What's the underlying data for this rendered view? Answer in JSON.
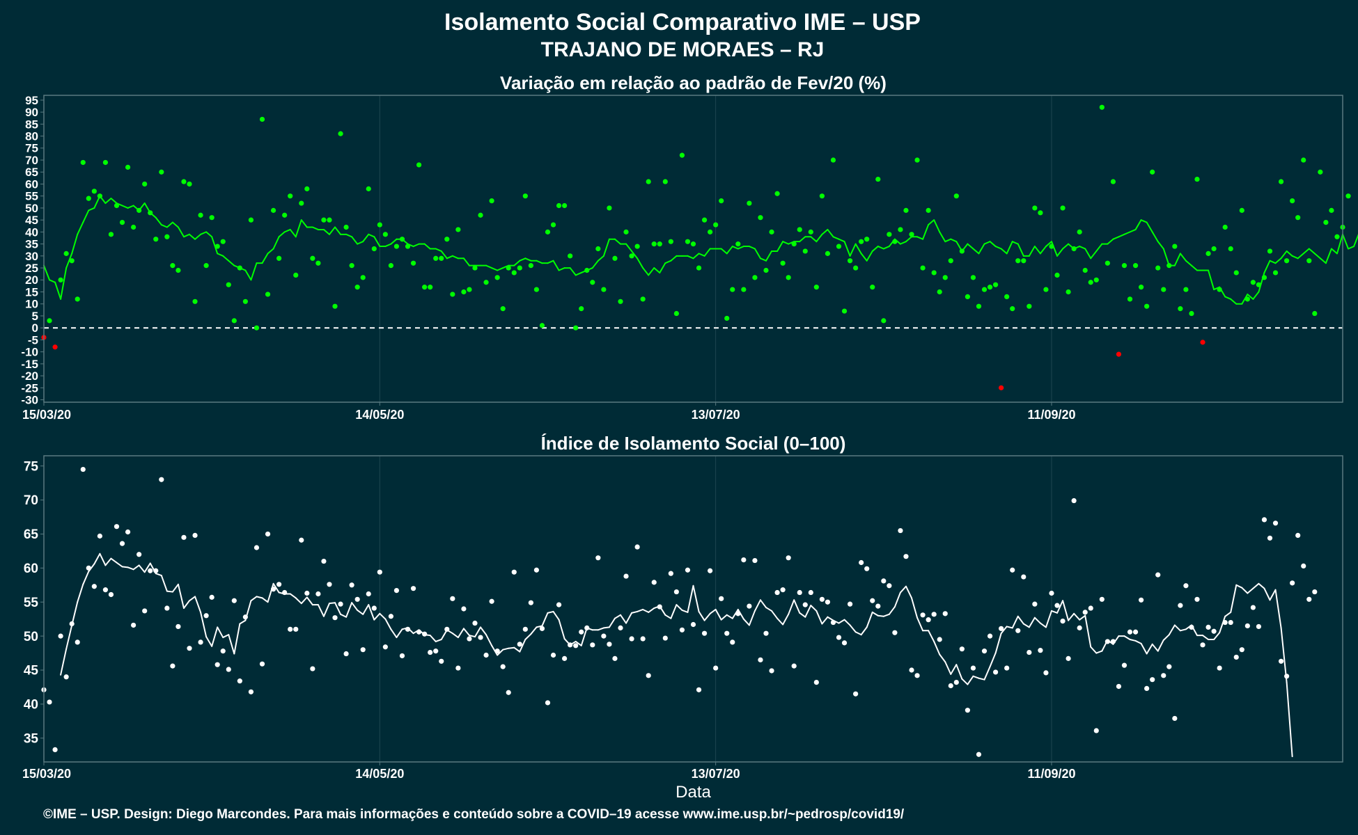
{
  "title": "Isolamento Social Comparativo IME – USP",
  "subtitle": "TRAJANO DE MORAES – RJ",
  "footer": "©IME – USP. Design: Diego Marcondes. Para mais informações e conteúdo sobre a COVID–19 acesse www.ime.usp.br/~pedrosp/covid19/",
  "colors": {
    "background": "#002b36",
    "panel_border": "#5a7a80",
    "grid": "#1e4650",
    "positive": "#00ff00",
    "negative": "#ff0000",
    "white": "#ffffff"
  },
  "chart_data": [
    {
      "type": "scatter",
      "title": "Variação em relação ao padrão de Fev/20 (%)",
      "xlabel": "",
      "ylabel": "",
      "x_start": "15/03/20",
      "x_ticks": [
        "15/03/20",
        "14/05/20",
        "13/07/20",
        "11/09/20"
      ],
      "x_tick_days": [
        0,
        60,
        120,
        180
      ],
      "xlim_days": [
        0,
        232
      ],
      "ylim": [
        -31,
        97
      ],
      "y_ticks": [
        -30,
        -25,
        -20,
        -15,
        -10,
        -5,
        0,
        5,
        10,
        15,
        20,
        25,
        30,
        35,
        40,
        45,
        50,
        55,
        60,
        65,
        70,
        75,
        80,
        85,
        90,
        95
      ],
      "reference_line": 0,
      "grid": true,
      "legend": "none",
      "series": [
        {
          "kind": "points",
          "values": [
            -4,
            3,
            -8,
            20,
            31,
            28,
            12,
            69,
            54,
            57,
            55,
            69,
            39,
            51,
            44,
            67,
            42,
            49,
            60,
            48,
            37,
            65,
            38,
            26,
            24,
            61,
            60,
            11,
            47,
            26,
            46,
            34,
            36,
            18,
            3,
            25,
            11,
            45,
            0,
            87,
            14,
            49,
            29,
            47,
            55,
            22,
            52,
            58,
            29,
            27,
            45,
            45,
            9,
            81,
            42,
            26,
            17,
            21,
            58,
            33,
            43,
            39,
            26,
            34,
            37,
            34,
            27,
            68,
            17,
            17,
            29,
            29,
            37,
            14,
            41,
            15,
            16,
            25,
            47,
            19,
            53,
            21,
            8,
            25,
            23,
            25,
            55,
            26,
            16,
            1,
            40,
            43,
            51,
            51,
            30,
            0,
            8,
            24,
            19,
            33,
            16,
            50,
            29,
            11,
            40,
            30,
            34,
            12,
            61,
            35,
            35,
            61,
            36,
            6,
            72,
            36,
            35,
            25,
            45,
            40,
            43,
            53,
            4,
            16,
            35,
            16,
            52,
            21,
            46,
            24,
            40,
            56,
            27,
            21,
            35,
            41,
            32,
            40,
            17,
            55,
            31,
            70,
            34,
            7,
            28,
            25,
            36,
            37,
            17,
            62,
            3,
            39,
            36,
            41,
            49,
            39,
            70,
            25,
            49,
            23,
            15,
            21,
            28,
            55,
            32,
            13,
            21,
            9,
            16,
            17,
            18,
            -25,
            13,
            8,
            28,
            28,
            9,
            50,
            48,
            16,
            34,
            22,
            50,
            15,
            33,
            40,
            24,
            19,
            20,
            92,
            27,
            61,
            -11,
            26,
            12,
            26,
            17,
            9,
            65,
            25,
            16,
            26,
            34,
            8,
            16,
            6,
            62,
            -6,
            31,
            33,
            16,
            42,
            33,
            23,
            49,
            12,
            19,
            18,
            21,
            32,
            23,
            61,
            28,
            53,
            46,
            70,
            28,
            6,
            65,
            44,
            49,
            38,
            42,
            55
          ]
        },
        {
          "kind": "line",
          "name": "",
          "start_day": 0,
          "values": [
            26,
            20,
            19,
            12,
            25,
            31,
            39,
            44,
            49,
            50,
            55,
            52,
            54,
            52,
            51,
            50,
            51,
            49,
            52,
            48,
            46,
            43,
            42,
            44,
            42,
            38,
            39,
            37,
            39,
            40,
            38,
            31,
            30,
            28,
            26,
            25,
            24,
            20,
            27,
            27,
            31,
            33,
            38,
            40,
            41,
            38,
            45,
            42,
            42,
            41,
            41,
            39,
            42,
            39,
            39,
            38,
            35,
            36,
            39,
            38,
            34,
            34,
            35,
            37,
            37,
            35,
            34,
            35,
            35,
            33,
            33,
            32,
            29,
            30,
            29,
            29,
            26,
            26,
            26,
            26,
            25,
            24,
            25,
            26,
            26,
            28,
            29,
            28,
            28,
            27,
            27,
            28,
            24,
            25,
            25,
            22,
            23,
            24,
            25,
            28,
            30,
            37,
            37,
            35,
            35,
            32,
            29,
            25,
            22,
            25,
            23,
            27,
            28,
            30,
            30,
            30,
            29,
            31,
            30,
            33,
            33,
            33,
            31,
            34,
            33,
            34,
            34,
            33,
            29,
            28,
            32,
            32,
            36,
            35,
            36,
            36,
            38,
            38,
            36,
            39,
            41,
            38,
            37,
            36,
            30,
            35,
            31,
            28,
            32,
            34,
            33,
            34,
            37,
            35,
            36,
            38,
            38,
            37,
            43,
            45,
            40,
            36,
            37,
            36,
            32,
            35,
            33,
            31,
            35,
            36,
            34,
            33,
            31,
            36,
            35,
            30,
            30,
            34,
            31,
            34,
            36,
            30,
            33,
            35,
            33,
            34,
            33,
            29,
            32,
            35,
            35,
            37,
            38,
            39,
            40,
            41,
            45,
            44,
            40,
            36,
            33,
            26,
            26,
            31,
            28,
            26,
            24,
            24,
            24,
            16,
            17,
            13,
            12,
            10,
            10,
            14,
            12,
            15,
            23,
            28,
            27,
            29,
            32,
            30,
            29,
            31,
            33,
            31,
            29,
            27,
            33,
            31,
            39,
            33,
            34,
            40,
            38,
            33,
            33,
            32,
            32,
            26,
            24,
            25,
            24,
            25,
            22,
            28,
            25,
            25,
            26,
            25,
            25,
            21,
            25,
            20,
            24,
            26,
            28,
            26,
            30,
            30,
            28,
            28,
            29,
            29,
            25,
            25,
            25,
            27,
            30,
            38,
            44,
            44,
            42,
            43,
            44,
            44,
            42,
            38,
            43
          ]
        }
      ]
    },
    {
      "type": "scatter",
      "title": "Índice de Isolamento Social (0–100)",
      "xlabel": "Data",
      "ylabel": "",
      "x_start": "15/03/20",
      "x_ticks": [
        "15/03/20",
        "14/05/20",
        "13/07/20",
        "11/09/20"
      ],
      "x_tick_days": [
        0,
        60,
        120,
        180
      ],
      "xlim_days": [
        0,
        232
      ],
      "ylim": [
        31.5,
        76.5
      ],
      "y_ticks": [
        35,
        40,
        45,
        50,
        55,
        60,
        65,
        70,
        75
      ],
      "grid": true,
      "legend": "none",
      "series": [
        {
          "kind": "points",
          "values": [
            42.1,
            40.3,
            33.3,
            50,
            44,
            51.8,
            49.1,
            74.5,
            60,
            57.3,
            64.7,
            56.8,
            56.1,
            66.1,
            63.6,
            65.3,
            51.6,
            62,
            53.7,
            59.6,
            59.6,
            73,
            54.1,
            45.6,
            51.4,
            64.5,
            48.2,
            64.8,
            49.1,
            53,
            55.7,
            45.8,
            47.8,
            45.1,
            55.2,
            43.4,
            52.8,
            41.8,
            63,
            45.9,
            65,
            56.9,
            57.6,
            56.4,
            51,
            51,
            64.1,
            56.3,
            45.2,
            56.2,
            61,
            57.6,
            52.7,
            54.7,
            47.4,
            57.5,
            55.4,
            48,
            56.2,
            54.1,
            59.4,
            48.4,
            52.9,
            56.7,
            47.1,
            51,
            57,
            50.6,
            50.3,
            47.6,
            47.8,
            46.3,
            51,
            55.5,
            45.3,
            54,
            49.6,
            51.9,
            49.8,
            47.2,
            55.1,
            47.8,
            45.5,
            41.7,
            59.4,
            48.8,
            51,
            54.9,
            59.7,
            51.1,
            40.2,
            47.2,
            54.6,
            46.7,
            48.7,
            48.6,
            50.6,
            51.2,
            48.7,
            61.5,
            50,
            48.8,
            46.7,
            51.2,
            58.8,
            49.6,
            63.1,
            49.6,
            44.2,
            57.9,
            54.3,
            49.7,
            59.2,
            56.5,
            50.9,
            59.7,
            51.7,
            42.1,
            50.4,
            59.6,
            45.3,
            55.5,
            50.4,
            49.1,
            53.3,
            61.2,
            54.4,
            61.1,
            46.5,
            50.4,
            44.9,
            56.4,
            56.8,
            61.5,
            45.6,
            56.4,
            54.6,
            56.4,
            43.2,
            55.4,
            55,
            52,
            49.8,
            49,
            54.7,
            41.5,
            60.8,
            59.9,
            55.2,
            54.4,
            58.1,
            57.4,
            50.5,
            65.5,
            61.7,
            45,
            44.2,
            53.1,
            52.4,
            53.2,
            49.5,
            53.3,
            42.7,
            43.2,
            48.1,
            39.1,
            45.3,
            32.6,
            47.8,
            50,
            44.7,
            51.1,
            45.3,
            59.7,
            50.8,
            58.7,
            47.6,
            54.7,
            47.9,
            44.6,
            56.3,
            54.5,
            52.2,
            46.7,
            69.9,
            51.2,
            53.5,
            54.1,
            36.1,
            55.4,
            49.2,
            49.2,
            42.6,
            45.7,
            50.6,
            50.6,
            55.3,
            42.3,
            43.6,
            59,
            44.2,
            45.5,
            37.9,
            54.5,
            57.4,
            51.3,
            55.4,
            48.7,
            51.3,
            50.7,
            45.3,
            52,
            52,
            46.9,
            48,
            51.5,
            54.2,
            51.4,
            67.1,
            64.4,
            66.6,
            46.3,
            44.1,
            57.8,
            64.8,
            60.3,
            55.4,
            56.5
          ]
        },
        {
          "kind": "line",
          "name": "",
          "start_day": 3,
          "values": [
            44.3,
            48.1,
            51.6,
            55,
            57.6,
            59.5,
            60.6,
            62.1,
            60.4,
            61.4,
            60.8,
            60.2,
            60.1,
            59.8,
            60.4,
            59.4,
            60.7,
            59.2,
            58.9,
            56.6,
            56.5,
            57.6,
            54.1,
            55.2,
            55.8,
            53.5,
            49.9,
            48.5,
            51.3,
            49.8,
            50.2,
            47.4,
            51.8,
            52.3,
            55.2,
            55.8,
            55.6,
            55,
            57.7,
            56.4,
            56.2,
            56.2,
            55.6,
            54.8,
            55.7,
            54.6,
            54.6,
            52.9,
            54.8,
            54.9,
            53.2,
            52.8,
            54.9,
            53.8,
            53.2,
            54.6,
            52.4,
            53.3,
            52.5,
            51,
            49.8,
            51,
            51.2,
            50.4,
            50.9,
            50.2,
            50.1,
            49.2,
            49.5,
            50.9,
            50.4,
            49.8,
            51.1,
            50.1,
            49.9,
            51.3,
            50.2,
            48.6,
            47.2,
            48,
            48.2,
            48.3,
            47.7,
            49.5,
            50.3,
            51.3,
            51.5,
            53.4,
            53.6,
            52.4,
            49.6,
            48.7,
            49.2,
            48.6,
            51.2,
            50.9,
            50.9,
            51.2,
            51.3,
            52.6,
            53.1,
            51.9,
            53.4,
            53.6,
            53.9,
            53.5,
            54.1,
            54.4,
            53.1,
            52.6,
            54.6,
            53.8,
            53.5,
            57.4,
            53.6,
            52.3,
            53.3,
            53.9,
            52.4,
            53.1,
            52.6,
            53.9,
            52.5,
            51.6,
            53.7,
            55.3,
            54.2,
            53.7,
            52.6,
            51.7,
            53.2,
            55.3,
            53.4,
            52.8,
            54.5,
            53.7,
            51.8,
            52.8,
            52.3,
            51.9,
            52.4,
            51.6,
            50.6,
            50.2,
            51.3,
            53.5,
            53,
            52.9,
            53.2,
            54.3,
            56.4,
            57.3,
            55.6,
            52.7,
            50.8,
            50.8,
            49.2,
            47.3,
            46.2,
            44.4,
            45.8,
            43.7,
            42.9,
            44.1,
            43.8,
            43.6,
            45.5,
            47.5,
            50.4,
            51.4,
            51.2,
            52.9,
            51.8,
            51.3,
            52.7,
            51.9,
            51.3,
            53.7,
            53.4,
            55.2,
            52.3,
            53.3,
            52.4,
            53,
            48.4,
            47.5,
            47.8,
            49.4,
            48.8,
            50,
            50,
            49.5,
            49.3,
            48.9,
            47.4,
            48.8,
            47.8,
            49.4,
            50.2,
            51.6,
            50.8,
            51,
            51.6,
            50.1,
            50.1,
            49.5,
            49.5,
            50.5,
            52.9,
            53.5,
            57.5,
            57.1,
            56.3,
            57,
            57.7,
            57,
            55.3,
            56.8,
            51.2,
            43.2,
            32.3
          ]
        }
      ]
    }
  ]
}
